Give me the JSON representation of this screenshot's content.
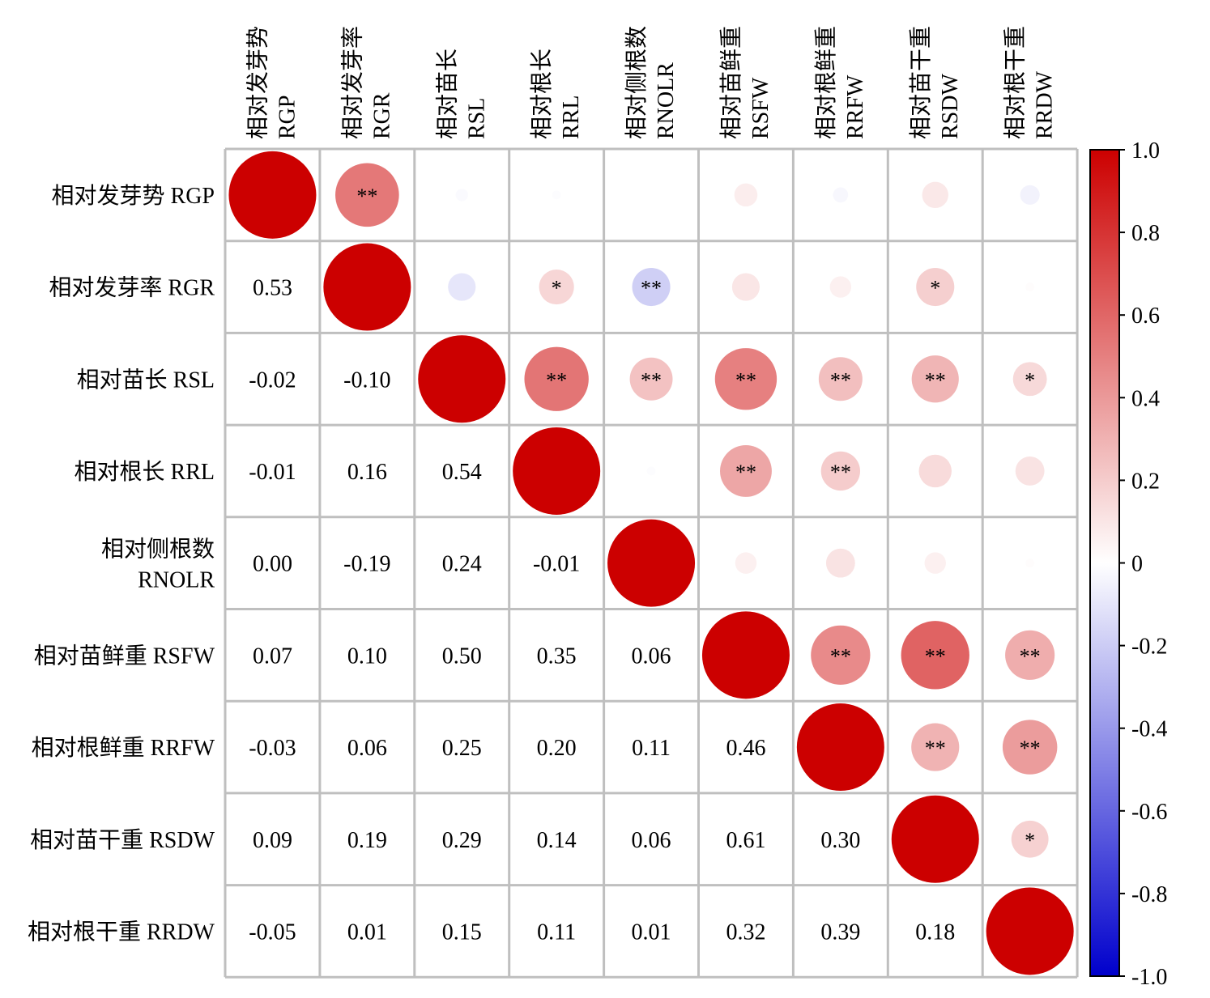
{
  "chart_data": {
    "type": "heatmap",
    "variables": [
      "相对发芽势 RGP",
      "相对发芽率 RGR",
      "相对苗长 RSL",
      "相对根长 RRL",
      "相对侧根数 RNOLR",
      "相对苗鲜重 RSFW",
      "相对根鲜重 RRFW",
      "相对苗干重 RSDW",
      "相对根干重 RRDW"
    ],
    "row_labels": [
      [
        "相对发芽势 RGP"
      ],
      [
        "相对发芽率 RGR"
      ],
      [
        "相对苗长 RSL"
      ],
      [
        "相对根长 RRL"
      ],
      [
        "相对侧根数",
        "RNOLR"
      ],
      [
        "相对苗鲜重 RSFW"
      ],
      [
        "相对根鲜重 RRFW"
      ],
      [
        "相对苗干重 RSDW"
      ],
      [
        "相对根干重 RRDW"
      ]
    ],
    "col_labels": [
      [
        "相对发芽势",
        "RGP"
      ],
      [
        "相对发芽率",
        "RGR"
      ],
      [
        "相对苗长",
        "RSL"
      ],
      [
        "相对根长",
        "RRL"
      ],
      [
        "相对侧根数",
        "RNOLR"
      ],
      [
        "相对苗鲜重",
        "RSFW"
      ],
      [
        "相对根鲜重",
        "RRFW"
      ],
      [
        "相对苗干重",
        "RSDW"
      ],
      [
        "相对根干重",
        "RRDW"
      ]
    ],
    "lower_labels": [
      [],
      [
        "0.53"
      ],
      [
        "-0.02",
        "-0.10"
      ],
      [
        "-0.01",
        "0.16",
        "0.54"
      ],
      [
        "0.00",
        "-0.19",
        "0.24",
        "-0.01"
      ],
      [
        "0.07",
        "0.10",
        "0.50",
        "0.35",
        "0.06"
      ],
      [
        "-0.03",
        "0.06",
        "0.25",
        "0.20",
        "0.11",
        "0.46"
      ],
      [
        "0.09",
        "0.19",
        "0.29",
        "0.14",
        "0.06",
        "0.61",
        "0.30"
      ],
      [
        "-0.05",
        "0.01",
        "0.15",
        "0.11",
        "0.01",
        "0.32",
        "0.39",
        "0.18"
      ]
    ],
    "significance": [
      [
        "",
        "**",
        "",
        "",
        "",
        "",
        "",
        "",
        ""
      ],
      [
        "",
        "",
        "",
        "*",
        "**",
        "",
        "",
        "*",
        ""
      ],
      [
        "",
        "",
        "",
        "**",
        "**",
        "**",
        "**",
        "**",
        "*"
      ],
      [
        "",
        "",
        "",
        "",
        "",
        "**",
        "**",
        "",
        ""
      ],
      [
        "",
        "",
        "",
        "",
        "",
        "",
        "",
        "",
        ""
      ],
      [
        "",
        "",
        "",
        "",
        "",
        "",
        "**",
        "**",
        "**"
      ],
      [
        "",
        "",
        "",
        "",
        "",
        "",
        "",
        "**",
        "**"
      ],
      [
        "",
        "",
        "",
        "",
        "",
        "",
        "",
        "",
        "*"
      ],
      [
        "",
        "",
        "",
        "",
        "",
        "",
        "",
        "",
        ""
      ]
    ],
    "colorbar": {
      "range": [
        -1.0,
        1.0
      ],
      "tick_labels": [
        "1.0",
        "0.8",
        "0.6",
        "0.4",
        "0.2",
        "0",
        "-0.2",
        "-0.4",
        "-0.6",
        "-0.8",
        "-1.0"
      ],
      "colors": {
        "negative": "#0000cc",
        "zero": "#ffffff",
        "positive": "#cc0000"
      }
    },
    "grid_color": "#bfbfbf"
  }
}
